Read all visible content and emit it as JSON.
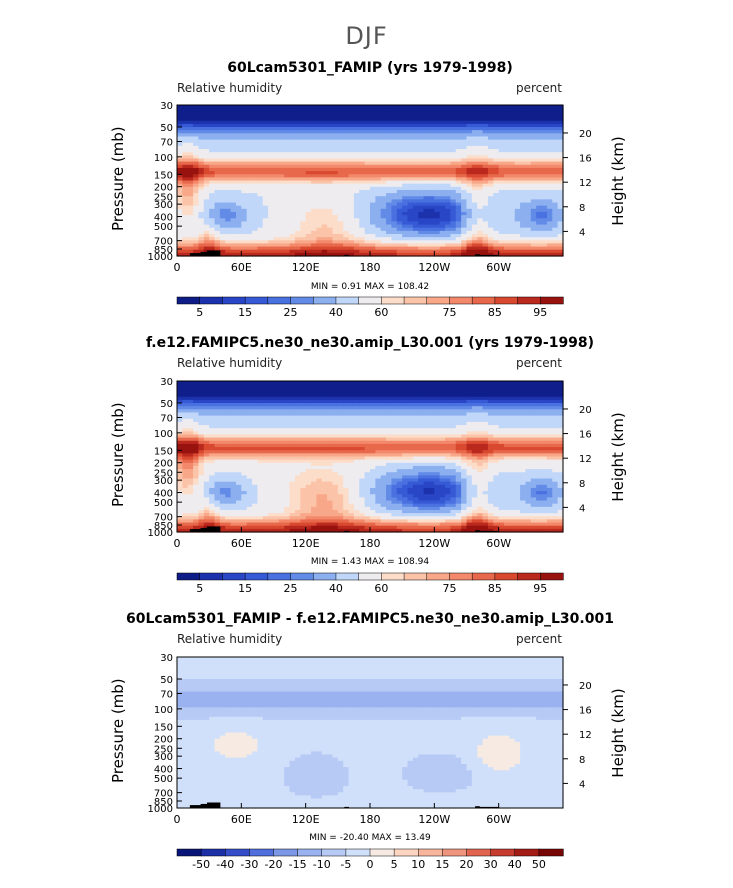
{
  "figure": {
    "main_title": "DJF",
    "colors": {
      "low": "#08208c",
      "mid": "#ffffff",
      "high": "#7a0404",
      "topo": "#000000"
    }
  },
  "chart_data": [
    {
      "type": "heatmap",
      "title": "60Lcam5301_FAMIP (yrs 1979-1998)",
      "variable": "Relative humidity",
      "units": "percent",
      "xlabel": "",
      "ylabel": "Pressure (mb)",
      "ylabel_right": "Height (km)",
      "x_ticks": [
        "0",
        "60E",
        "120E",
        "180",
        "120W",
        "60W"
      ],
      "y_ticks": [
        "30",
        "50",
        "70",
        "100",
        "150",
        "200",
        "250",
        "300",
        "400",
        "500",
        "700",
        "850",
        "1000"
      ],
      "right_ticks": [
        "20",
        "16",
        "12",
        "8",
        "4"
      ],
      "min_text": "MIN =    0.91   MAX = 108.42",
      "colorbar_labels": [
        "5",
        "15",
        "25",
        "40",
        "60",
        "75",
        "85",
        "95"
      ],
      "field": "abs1"
    },
    {
      "type": "heatmap",
      "title": "f.e12.FAMIPC5.ne30_ne30.amip_L30.001 (yrs 1979-1998)",
      "variable": "Relative humidity",
      "units": "percent",
      "xlabel": "",
      "ylabel": "Pressure (mb)",
      "ylabel_right": "Height (km)",
      "x_ticks": [
        "0",
        "60E",
        "120E",
        "180",
        "120W",
        "60W"
      ],
      "y_ticks": [
        "30",
        "50",
        "70",
        "100",
        "150",
        "200",
        "250",
        "300",
        "400",
        "500",
        "700",
        "850",
        "1000"
      ],
      "right_ticks": [
        "20",
        "16",
        "12",
        "8",
        "4"
      ],
      "min_text": "MIN =    1.43   MAX = 108.94",
      "colorbar_labels": [
        "5",
        "15",
        "25",
        "40",
        "60",
        "75",
        "85",
        "95"
      ],
      "field": "abs2"
    },
    {
      "type": "heatmap",
      "title": "60Lcam5301_FAMIP - f.e12.FAMIPC5.ne30_ne30.amip_L30.001",
      "variable": "Relative humidity",
      "units": "percent",
      "xlabel": "",
      "ylabel": "Pressure (mb)",
      "ylabel_right": "Height (km)",
      "x_ticks": [
        "0",
        "60E",
        "120E",
        "180",
        "120W",
        "60W"
      ],
      "y_ticks": [
        "30",
        "50",
        "70",
        "100",
        "150",
        "200",
        "250",
        "300",
        "400",
        "500",
        "700",
        "850",
        "1000"
      ],
      "right_ticks": [
        "20",
        "16",
        "12",
        "8",
        "4"
      ],
      "min_text": "MIN = -20.40   MAX =   13.49",
      "colorbar_labels": [
        "-50",
        "-40",
        "-30",
        "-20",
        "-15",
        "-10",
        "-5",
        "0",
        "5",
        "10",
        "15",
        "20",
        "30",
        "40",
        "50"
      ],
      "field": "diff"
    }
  ]
}
